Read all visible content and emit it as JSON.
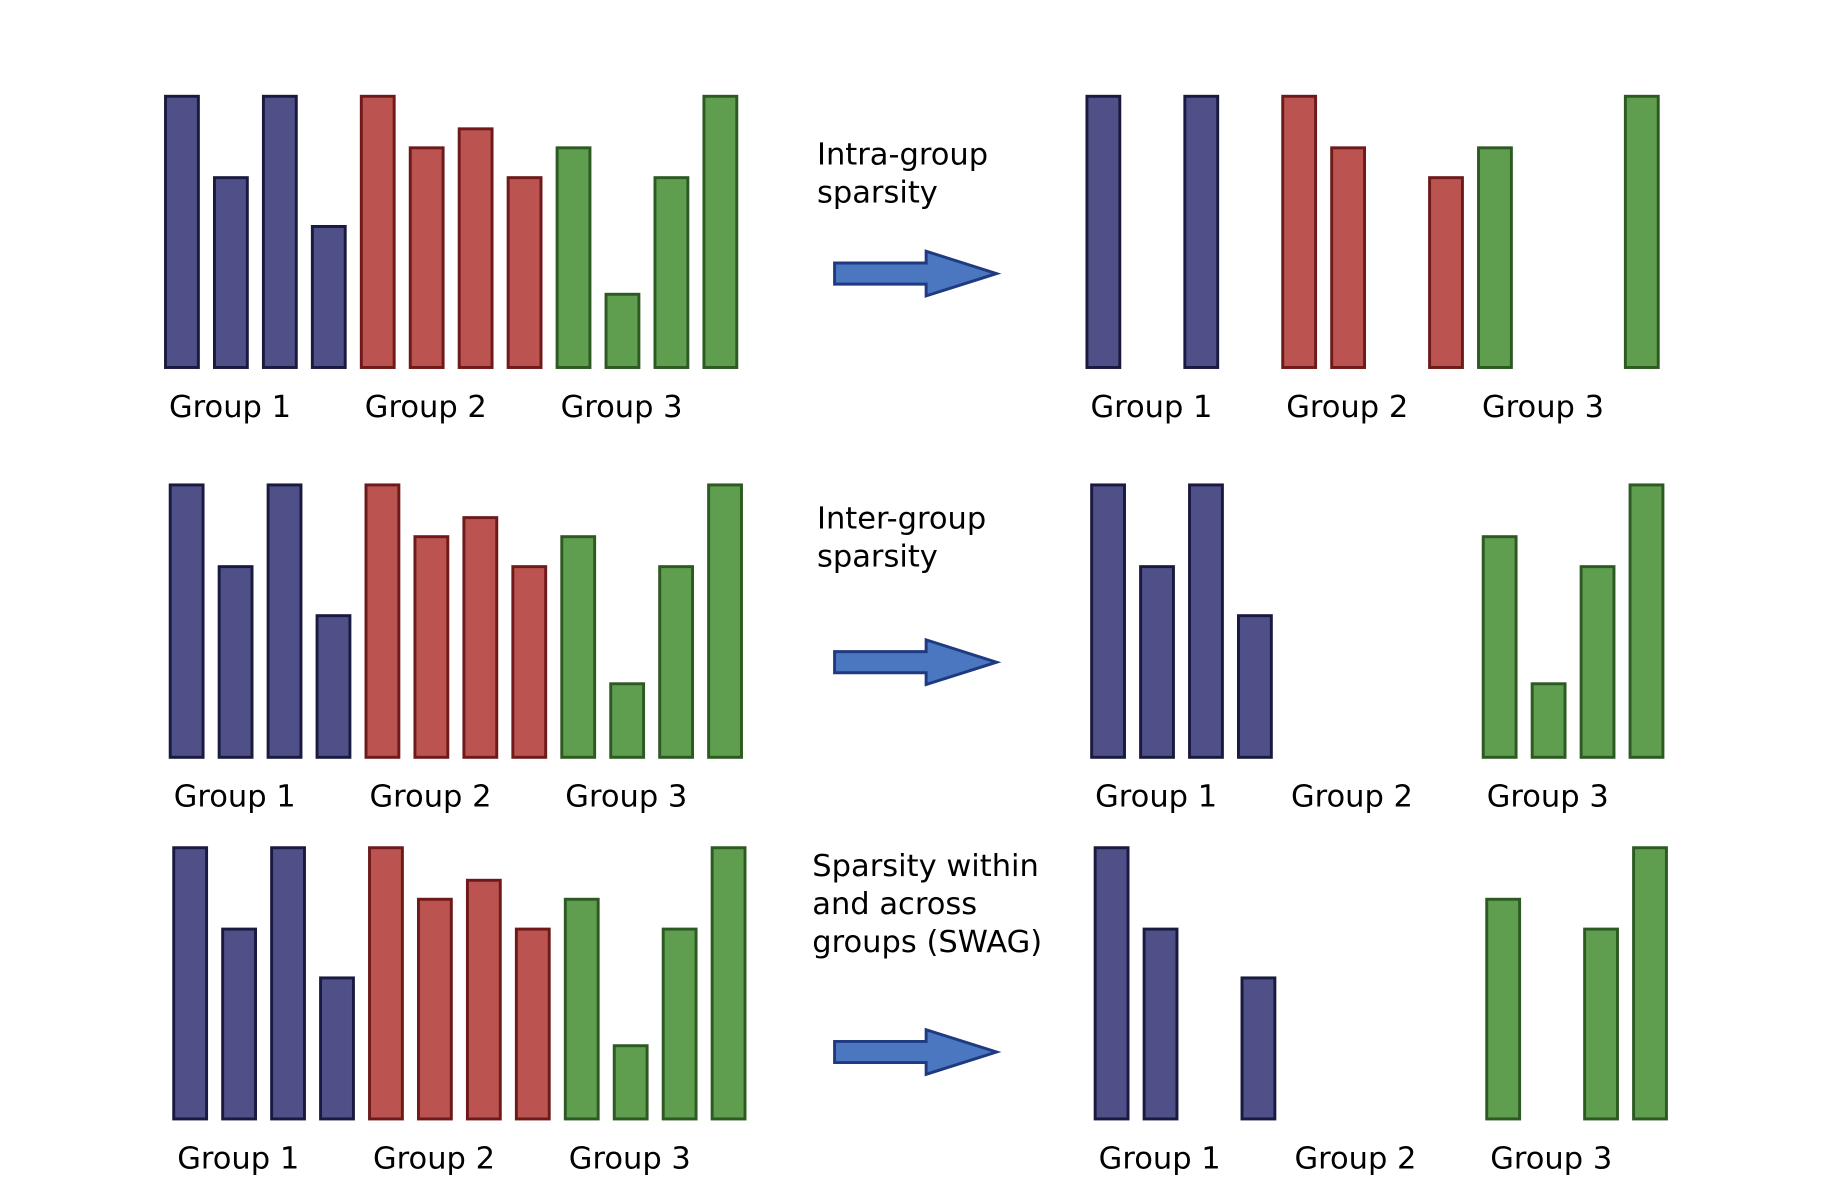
{
  "colors": {
    "group_fill": [
      "#4f5088",
      "#bb5350",
      "#5e9e4e"
    ],
    "group_stroke": [
      "#1a1a40",
      "#6e1a1a",
      "#2d5a22"
    ],
    "arrow_fill": "#4a77c0",
    "arrow_stroke": "#1f3a80"
  },
  "group_labels": [
    "Group 1",
    "Group 2",
    "Group 3"
  ],
  "rows": [
    {
      "caption": [
        "Intra-group",
        "sparsity"
      ],
      "before": [
        [
          1,
          0.7,
          1,
          0.52
        ],
        [
          1,
          0.81,
          0.88,
          0.7
        ],
        [
          0.81,
          0.27,
          0.7,
          1
        ]
      ],
      "after": [
        [
          1,
          0,
          1,
          0
        ],
        [
          1,
          0.81,
          0,
          0.7
        ],
        [
          0.81,
          0,
          0,
          1
        ]
      ]
    },
    {
      "caption": [
        "Inter-group",
        "sparsity"
      ],
      "before": [
        [
          1,
          0.7,
          1,
          0.52
        ],
        [
          1,
          0.81,
          0.88,
          0.7
        ],
        [
          0.81,
          0.27,
          0.7,
          1
        ]
      ],
      "after": [
        [
          1,
          0.7,
          1,
          0.52
        ],
        [
          0,
          0,
          0,
          0
        ],
        [
          0.81,
          0.27,
          0.7,
          1
        ]
      ]
    },
    {
      "caption": [
        "Sparsity within",
        "and across",
        "groups (SWAG)"
      ],
      "before": [
        [
          1,
          0.7,
          1,
          0.52
        ],
        [
          1,
          0.81,
          0.88,
          0.7
        ],
        [
          0.81,
          0.27,
          0.7,
          1
        ]
      ],
      "after": [
        [
          1,
          0.7,
          0,
          0.52
        ],
        [
          0,
          0,
          0,
          0
        ],
        [
          0.81,
          0,
          0.7,
          1
        ]
      ]
    }
  ]
}
